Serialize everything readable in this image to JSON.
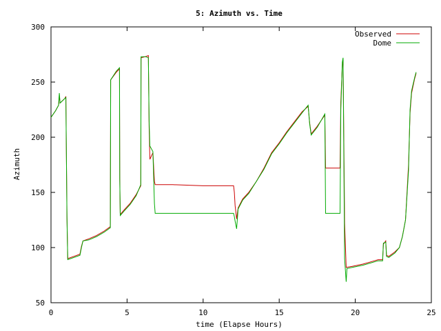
{
  "chart_data": {
    "type": "line",
    "title": "5: Azimuth vs. Time",
    "xlabel": "time (Elapse Hours)",
    "ylabel": "Azimuth",
    "xlim": [
      0,
      25
    ],
    "ylim": [
      50,
      300
    ],
    "xticks": [
      0,
      5,
      10,
      15,
      20,
      25
    ],
    "yticks": [
      50,
      100,
      150,
      200,
      250,
      300
    ],
    "grid": false,
    "legend_position": "top-right",
    "series": [
      {
        "name": "Observed",
        "color": "#cc0000",
        "points": [
          [
            0,
            218
          ],
          [
            0.3,
            224
          ],
          [
            0.5,
            229
          ],
          [
            0.55,
            238
          ],
          [
            0.6,
            231
          ],
          [
            0.9,
            235
          ],
          [
            0.98,
            237
          ],
          [
            1.0,
            201
          ],
          [
            1.05,
            128
          ],
          [
            1.1,
            90
          ],
          [
            1.5,
            92
          ],
          [
            1.9,
            94
          ],
          [
            2.0,
            101
          ],
          [
            2.1,
            106
          ],
          [
            2.5,
            108
          ],
          [
            3.0,
            111
          ],
          [
            3.5,
            115
          ],
          [
            3.9,
            119
          ],
          [
            3.92,
            252
          ],
          [
            4.3,
            259
          ],
          [
            4.5,
            262
          ],
          [
            4.52,
            163
          ],
          [
            4.55,
            130
          ],
          [
            4.8,
            134
          ],
          [
            5.2,
            140
          ],
          [
            5.6,
            148
          ],
          [
            5.9,
            156
          ],
          [
            5.92,
            272
          ],
          [
            6.2,
            273
          ],
          [
            6.4,
            274
          ],
          [
            6.45,
            210
          ],
          [
            6.5,
            180
          ],
          [
            6.7,
            186
          ],
          [
            6.8,
            160
          ],
          [
            6.85,
            157
          ],
          [
            8.0,
            157
          ],
          [
            10.0,
            156
          ],
          [
            12.0,
            156
          ],
          [
            12.05,
            150
          ],
          [
            12.1,
            138
          ],
          [
            12.2,
            126
          ],
          [
            12.3,
            136
          ],
          [
            12.6,
            144
          ],
          [
            13.0,
            150
          ],
          [
            13.5,
            160
          ],
          [
            14.0,
            172
          ],
          [
            14.5,
            186
          ],
          [
            15.0,
            195
          ],
          [
            15.5,
            205
          ],
          [
            16.0,
            214
          ],
          [
            16.5,
            223
          ],
          [
            16.9,
            228
          ],
          [
            17.0,
            213
          ],
          [
            17.1,
            203
          ],
          [
            17.5,
            210
          ],
          [
            18.0,
            220
          ],
          [
            18.05,
            172
          ],
          [
            19.0,
            172
          ],
          [
            19.05,
            232
          ],
          [
            19.15,
            265
          ],
          [
            19.2,
            270
          ],
          [
            19.3,
            122
          ],
          [
            19.4,
            82
          ],
          [
            19.8,
            83
          ],
          [
            20.5,
            85
          ],
          [
            21.0,
            87
          ],
          [
            21.5,
            89
          ],
          [
            21.8,
            89
          ],
          [
            21.85,
            103
          ],
          [
            22.0,
            106
          ],
          [
            22.05,
            93
          ],
          [
            22.2,
            92
          ],
          [
            22.6,
            96
          ],
          [
            22.9,
            100
          ],
          [
            23.1,
            110
          ],
          [
            23.3,
            125
          ],
          [
            23.5,
            175
          ],
          [
            23.6,
            222
          ],
          [
            23.7,
            240
          ],
          [
            23.9,
            253
          ],
          [
            24.0,
            258
          ]
        ]
      },
      {
        "name": "Dome",
        "color": "#00aa00",
        "points": [
          [
            0,
            218
          ],
          [
            0.3,
            224
          ],
          [
            0.5,
            229
          ],
          [
            0.55,
            240
          ],
          [
            0.6,
            231
          ],
          [
            0.9,
            235
          ],
          [
            0.98,
            236
          ],
          [
            1.0,
            200
          ],
          [
            1.05,
            126
          ],
          [
            1.1,
            89
          ],
          [
            1.5,
            91
          ],
          [
            1.9,
            93
          ],
          [
            2.0,
            100
          ],
          [
            2.1,
            106
          ],
          [
            2.5,
            107
          ],
          [
            3.0,
            110
          ],
          [
            3.5,
            114
          ],
          [
            3.9,
            118
          ],
          [
            3.92,
            252
          ],
          [
            4.3,
            260
          ],
          [
            4.5,
            263
          ],
          [
            4.52,
            162
          ],
          [
            4.55,
            129
          ],
          [
            4.8,
            133
          ],
          [
            5.2,
            139
          ],
          [
            5.6,
            147
          ],
          [
            5.9,
            157
          ],
          [
            5.92,
            273
          ],
          [
            6.2,
            273
          ],
          [
            6.4,
            272
          ],
          [
            6.45,
            215
          ],
          [
            6.5,
            192
          ],
          [
            6.7,
            187
          ],
          [
            6.8,
            140
          ],
          [
            6.85,
            131
          ],
          [
            8.0,
            131
          ],
          [
            10.0,
            131
          ],
          [
            12.0,
            131
          ],
          [
            12.05,
            128
          ],
          [
            12.1,
            124
          ],
          [
            12.2,
            117
          ],
          [
            12.3,
            135
          ],
          [
            12.6,
            143
          ],
          [
            13.0,
            149
          ],
          [
            13.5,
            160
          ],
          [
            14.0,
            171
          ],
          [
            14.5,
            185
          ],
          [
            15.0,
            194
          ],
          [
            15.5,
            204
          ],
          [
            16.0,
            213
          ],
          [
            16.5,
            222
          ],
          [
            16.9,
            229
          ],
          [
            17.0,
            212
          ],
          [
            17.1,
            202
          ],
          [
            17.5,
            209
          ],
          [
            18.0,
            221
          ],
          [
            18.05,
            131
          ],
          [
            19.0,
            131
          ],
          [
            19.05,
            225
          ],
          [
            19.15,
            268
          ],
          [
            19.2,
            272
          ],
          [
            19.3,
            90
          ],
          [
            19.4,
            69
          ],
          [
            19.45,
            81
          ],
          [
            19.8,
            82
          ],
          [
            20.5,
            84
          ],
          [
            21.0,
            86
          ],
          [
            21.5,
            88
          ],
          [
            21.8,
            88
          ],
          [
            21.85,
            104
          ],
          [
            22.0,
            105
          ],
          [
            22.05,
            92
          ],
          [
            22.2,
            91
          ],
          [
            22.6,
            95
          ],
          [
            22.9,
            100
          ],
          [
            23.1,
            110
          ],
          [
            23.3,
            125
          ],
          [
            23.5,
            170
          ],
          [
            23.6,
            225
          ],
          [
            23.7,
            242
          ],
          [
            23.9,
            254
          ],
          [
            24.0,
            259
          ]
        ]
      }
    ]
  }
}
